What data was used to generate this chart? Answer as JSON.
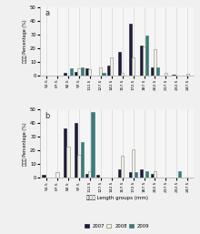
{
  "categories": [
    "52.5",
    "67.5",
    "82.5",
    "97.5",
    "112.5",
    "127.5",
    "142.5",
    "157.5",
    "172.5",
    "187.5",
    "202.5",
    "217.5",
    "232.5",
    "247.5"
  ],
  "panel_a": {
    "2007": [
      0,
      0,
      2,
      2.5,
      5,
      0,
      7,
      17,
      38,
      22,
      6,
      0,
      0.5,
      0
    ],
    "2008": [
      0,
      0,
      0,
      5,
      4.5,
      6,
      13,
      2,
      13,
      21,
      19,
      2,
      0,
      1
    ],
    "2009": [
      0,
      0,
      5,
      6,
      0,
      2,
      0,
      0,
      0,
      29,
      6,
      0,
      0,
      0
    ]
  },
  "panel_b": {
    "2007": [
      2,
      0,
      36,
      40,
      3,
      2,
      0,
      6,
      4,
      6,
      3,
      0,
      0,
      0
    ],
    "2008": [
      0,
      4,
      23,
      17,
      5,
      0,
      0,
      16,
      21,
      0,
      5,
      0,
      0,
      0
    ],
    "2009": [
      0,
      0,
      0,
      26,
      48,
      0,
      0,
      0,
      4,
      5,
      0,
      0,
      5,
      0
    ]
  },
  "colors": {
    "2007": "#1c1c3a",
    "2008": "#f0f0e8",
    "2009": "#3d7a7a"
  },
  "edgecolors": {
    "2007": "#1c1c3a",
    "2008": "#888878",
    "2009": "#3d7a7a"
  },
  "ylim": [
    0,
    50
  ],
  "yticks": [
    0,
    10,
    20,
    30,
    40,
    50
  ],
  "ylabel_cn": "百分数 Percentage (%)",
  "xlabel_cn": "体长组 Length groups (mm)",
  "legend_labels": [
    "2007",
    "2008",
    "2009"
  ],
  "bg_color": "#f0f0f0",
  "plot_bg": "#f5f5f5",
  "panel_labels": [
    "a",
    "b"
  ],
  "bar_width": 0.27,
  "grid_color": "#d0d0d0"
}
